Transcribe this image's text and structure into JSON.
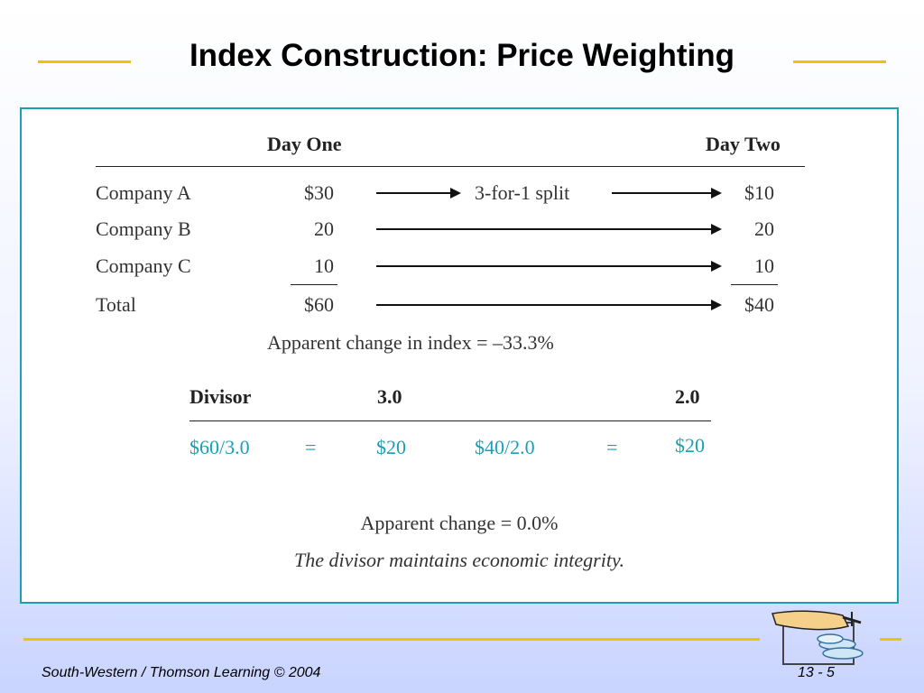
{
  "slide": {
    "title": "Index Construction: Price Weighting",
    "footer_left": "South-Western / Thomson Learning © 2004",
    "footer_right": "13 - 5"
  },
  "table": {
    "header_day_one": "Day One",
    "header_day_two": "Day Two",
    "rows": [
      {
        "label": "Company A",
        "day_one": "$30",
        "middle": "3-for-1 split",
        "day_two": "$10"
      },
      {
        "label": "Company B",
        "day_one": "20",
        "middle": "",
        "day_two": "20"
      },
      {
        "label": "Company C",
        "day_one": "10",
        "middle": "",
        "day_two": "10"
      },
      {
        "label": "Total",
        "day_one": "$60",
        "middle": "",
        "day_two": "$40"
      }
    ],
    "apparent_change_index": "Apparent change in index = –33.3%"
  },
  "divisor": {
    "label": "Divisor",
    "day_one": "3.0",
    "day_two": "2.0",
    "calc": {
      "left_expr": "$60/3.0",
      "eq1": "=",
      "left_result": "$20",
      "right_expr": "$40/2.0",
      "eq2": "=",
      "right_result": "$20"
    }
  },
  "summary": {
    "apparent_change": "Apparent change = 0.0%",
    "note": "The divisor maintains economic integrity."
  },
  "colors": {
    "accent_line": "#f2c200",
    "panel_border": "#1a9fb4",
    "calc_text": "#1a9fb4"
  }
}
